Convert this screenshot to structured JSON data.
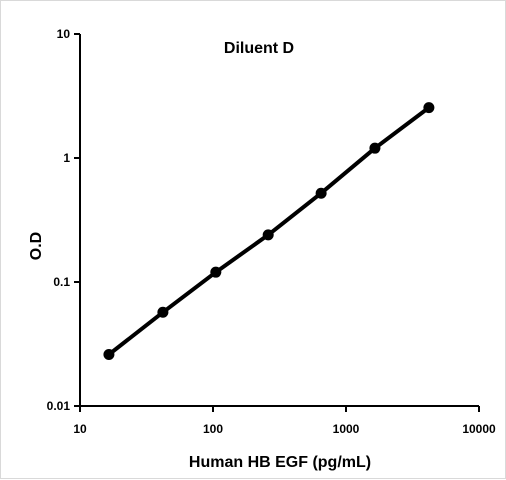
{
  "chart_data": {
    "type": "line",
    "title": "Diluent D",
    "xlabel": "Human HB EGF (pg/mL)",
    "ylabel": "O.D",
    "x_scale": "log",
    "y_scale": "log",
    "xlim": [
      10,
      10000
    ],
    "ylim": [
      0.01,
      10
    ],
    "x_ticks": [
      "10",
      "100",
      "1000",
      "10000"
    ],
    "y_ticks": [
      "0.01",
      "0.1",
      "1",
      "10"
    ],
    "grid": false,
    "legend": "none",
    "series": [
      {
        "color": "#000000",
        "x": [
          16.5,
          42,
          105,
          260,
          650,
          1650,
          4200
        ],
        "y": [
          0.026,
          0.057,
          0.12,
          0.24,
          0.52,
          1.2,
          2.55
        ]
      }
    ]
  }
}
